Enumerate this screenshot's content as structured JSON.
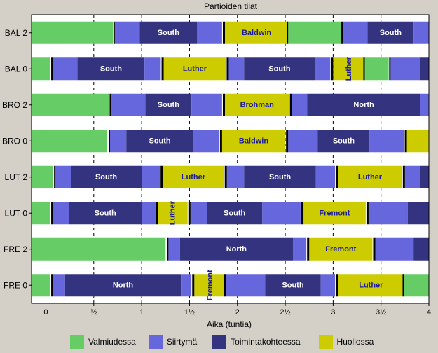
{
  "chart_data": {
    "type": "gantt",
    "title": "Partioiden tilat",
    "xlabel": "Aika (tuntia)",
    "xlim": [
      -0.15,
      4.0
    ],
    "xticks": [
      {
        "value": 0,
        "label": "0"
      },
      {
        "value": 0.5,
        "label": "½"
      },
      {
        "value": 1,
        "label": "1"
      },
      {
        "value": 1.5,
        "label": "1½"
      },
      {
        "value": 2,
        "label": "2"
      },
      {
        "value": 2.5,
        "label": "2½"
      },
      {
        "value": 3,
        "label": "3"
      },
      {
        "value": 3.5,
        "label": "3½"
      },
      {
        "value": 4,
        "label": "4"
      }
    ],
    "colors": {
      "ready": "#66cc66",
      "transfer": "#6666dd",
      "mission": "#333380",
      "maintenance": "#cccc00",
      "label_on_mission": "#ffffff",
      "label_on_maintenance": "#1a1a99",
      "separator": "#000000"
    },
    "legend": [
      {
        "key": "ready",
        "label": "Valmiudessa"
      },
      {
        "key": "transfer",
        "label": "Siirtymä"
      },
      {
        "key": "mission",
        "label": "Toimintakohteessa"
      },
      {
        "key": "maintenance",
        "label": "Huollossa"
      }
    ],
    "rows": [
      {
        "label": "BAL 2",
        "segments": [
          {
            "state": "ready",
            "start": -0.15,
            "end": 0.7
          },
          {
            "state": "transfer",
            "start": 0.72,
            "end": 0.98
          },
          {
            "state": "mission",
            "start": 0.98,
            "end": 1.58,
            "text": "South"
          },
          {
            "state": "transfer",
            "start": 1.58,
            "end": 1.84
          },
          {
            "state": "maintenance",
            "start": 1.87,
            "end": 2.53,
            "text": "Baldwin"
          },
          {
            "state": "ready",
            "start": 2.53,
            "end": 3.08
          },
          {
            "state": "transfer",
            "start": 3.1,
            "end": 3.36
          },
          {
            "state": "mission",
            "start": 3.36,
            "end": 3.84,
            "text": "South"
          },
          {
            "state": "transfer",
            "start": 3.84,
            "end": 4.0
          }
        ]
      },
      {
        "label": "BAL 0",
        "segments": [
          {
            "state": "ready",
            "start": -0.15,
            "end": 0.04
          },
          {
            "state": "transfer",
            "start": 0.07,
            "end": 0.33
          },
          {
            "state": "mission",
            "start": 0.33,
            "end": 1.03,
            "text": "South"
          },
          {
            "state": "transfer",
            "start": 1.03,
            "end": 1.2
          },
          {
            "state": "maintenance",
            "start": 1.23,
            "end": 1.88,
            "text": "Luther"
          },
          {
            "state": "transfer",
            "start": 1.91,
            "end": 2.07
          },
          {
            "state": "mission",
            "start": 2.07,
            "end": 2.81,
            "text": "South"
          },
          {
            "state": "transfer",
            "start": 2.81,
            "end": 2.97
          },
          {
            "state": "maintenance",
            "start": 3.0,
            "end": 3.33,
            "text": "Luther",
            "vertical": true
          },
          {
            "state": "ready",
            "start": 3.33,
            "end": 3.58
          },
          {
            "state": "transfer",
            "start": 3.6,
            "end": 3.91
          },
          {
            "state": "mission",
            "start": 3.91,
            "end": 4.0
          }
        ]
      },
      {
        "label": "BRO 2",
        "segments": [
          {
            "state": "ready",
            "start": -0.15,
            "end": 0.66
          },
          {
            "state": "transfer",
            "start": 0.68,
            "end": 1.04
          },
          {
            "state": "mission",
            "start": 1.04,
            "end": 1.52,
            "text": "South"
          },
          {
            "state": "transfer",
            "start": 1.52,
            "end": 1.84
          },
          {
            "state": "maintenance",
            "start": 1.87,
            "end": 2.54,
            "text": "Brohman"
          },
          {
            "state": "transfer",
            "start": 2.57,
            "end": 2.73
          },
          {
            "state": "mission",
            "start": 2.73,
            "end": 3.91,
            "text": "North"
          },
          {
            "state": "transfer",
            "start": 3.91,
            "end": 4.0
          }
        ]
      },
      {
        "label": "BRO 0",
        "segments": [
          {
            "state": "ready",
            "start": -0.15,
            "end": 0.64
          },
          {
            "state": "transfer",
            "start": 0.67,
            "end": 0.84
          },
          {
            "state": "mission",
            "start": 0.84,
            "end": 1.54,
            "text": "South"
          },
          {
            "state": "transfer",
            "start": 1.54,
            "end": 1.81
          },
          {
            "state": "maintenance",
            "start": 1.84,
            "end": 2.5,
            "text": "Baldwin"
          },
          {
            "state": "transfer",
            "start": 2.53,
            "end": 2.84
          },
          {
            "state": "mission",
            "start": 2.84,
            "end": 3.38,
            "text": "South"
          },
          {
            "state": "transfer",
            "start": 3.38,
            "end": 3.74
          },
          {
            "state": "maintenance",
            "start": 3.77,
            "end": 4.0
          }
        ]
      },
      {
        "label": "LUT 2",
        "segments": [
          {
            "state": "ready",
            "start": -0.15,
            "end": 0.07
          },
          {
            "state": "transfer",
            "start": 0.1,
            "end": 0.26
          },
          {
            "state": "mission",
            "start": 0.26,
            "end": 1.0,
            "text": "South"
          },
          {
            "state": "transfer",
            "start": 1.0,
            "end": 1.19
          },
          {
            "state": "maintenance",
            "start": 1.22,
            "end": 1.86,
            "text": "Luther"
          },
          {
            "state": "transfer",
            "start": 1.89,
            "end": 2.07
          },
          {
            "state": "mission",
            "start": 2.07,
            "end": 2.82,
            "text": "South"
          },
          {
            "state": "transfer",
            "start": 2.82,
            "end": 3.02
          },
          {
            "state": "maintenance",
            "start": 3.05,
            "end": 3.72,
            "text": "Luther"
          },
          {
            "state": "transfer",
            "start": 3.75,
            "end": 3.91
          },
          {
            "state": "mission",
            "start": 3.91,
            "end": 4.0
          }
        ]
      },
      {
        "label": "LUT 0",
        "segments": [
          {
            "state": "ready",
            "start": -0.15,
            "end": 0.04
          },
          {
            "state": "transfer",
            "start": 0.07,
            "end": 0.24
          },
          {
            "state": "mission",
            "start": 0.24,
            "end": 1.0,
            "text": "South"
          },
          {
            "state": "transfer",
            "start": 1.0,
            "end": 1.15
          },
          {
            "state": "maintenance",
            "start": 1.17,
            "end": 1.48,
            "text": "Luther",
            "vertical": true
          },
          {
            "state": "transfer",
            "start": 1.51,
            "end": 1.68
          },
          {
            "state": "mission",
            "start": 1.68,
            "end": 2.26,
            "text": "South"
          },
          {
            "state": "transfer",
            "start": 2.26,
            "end": 2.66
          },
          {
            "state": "maintenance",
            "start": 2.69,
            "end": 3.34,
            "text": "Fremont"
          },
          {
            "state": "transfer",
            "start": 3.37,
            "end": 3.78
          },
          {
            "state": "mission",
            "start": 3.78,
            "end": 4.0
          }
        ]
      },
      {
        "label": "FRE 2",
        "segments": [
          {
            "state": "ready",
            "start": -0.15,
            "end": 1.25
          },
          {
            "state": "transfer",
            "start": 1.28,
            "end": 1.4
          },
          {
            "state": "mission",
            "start": 1.4,
            "end": 2.58,
            "text": "North"
          },
          {
            "state": "transfer",
            "start": 2.58,
            "end": 2.72
          },
          {
            "state": "maintenance",
            "start": 2.75,
            "end": 3.41,
            "text": "Fremont"
          },
          {
            "state": "transfer",
            "start": 3.44,
            "end": 3.84
          },
          {
            "state": "mission",
            "start": 3.84,
            "end": 4.0
          }
        ]
      },
      {
        "label": "FRE 0",
        "segments": [
          {
            "state": "ready",
            "start": -0.15,
            "end": 0.04
          },
          {
            "state": "transfer",
            "start": 0.07,
            "end": 0.2
          },
          {
            "state": "mission",
            "start": 0.2,
            "end": 1.41,
            "text": "North"
          },
          {
            "state": "transfer",
            "start": 1.41,
            "end": 1.52
          },
          {
            "state": "maintenance",
            "start": 1.55,
            "end": 1.88,
            "text": "Fremont",
            "vertical": true
          },
          {
            "state": "transfer",
            "start": 1.88,
            "end": 2.29
          },
          {
            "state": "mission",
            "start": 2.29,
            "end": 2.87,
            "text": "South"
          },
          {
            "state": "transfer",
            "start": 2.87,
            "end": 3.02
          },
          {
            "state": "maintenance",
            "start": 3.05,
            "end": 3.74,
            "text": "Luther"
          },
          {
            "state": "ready",
            "start": 3.74,
            "end": 4.0
          }
        ]
      }
    ]
  }
}
